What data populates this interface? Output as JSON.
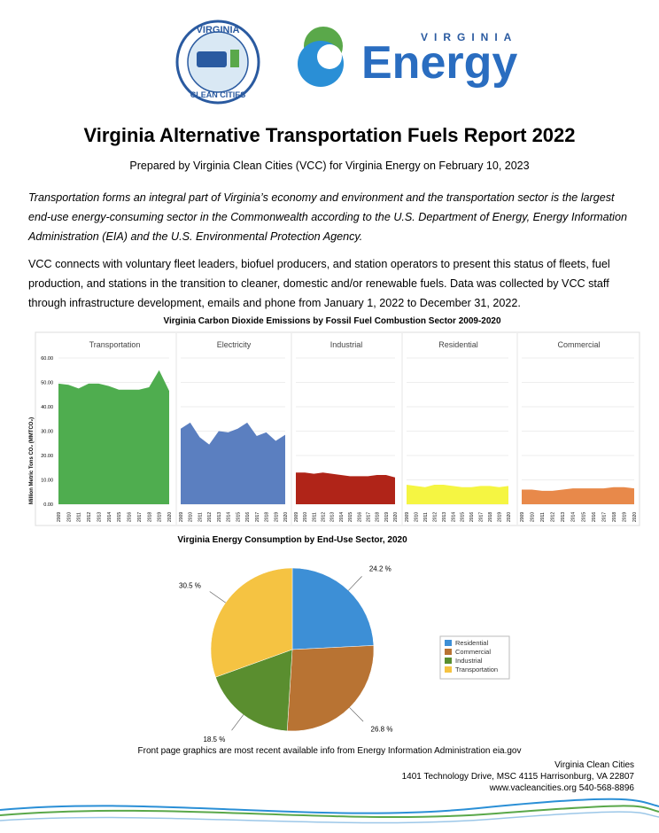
{
  "logos": {
    "vcc_top": "VIRGINIA",
    "vcc_bottom": "CLEAN CITIES",
    "ve_small": "VIRGINIA",
    "ve_big": "Energy"
  },
  "header": {
    "title": "Virginia Alternative Transportation Fuels Report 2022",
    "subtitle": "Prepared by Virginia Clean Cities (VCC) for Virginia Energy on February 10, 2023"
  },
  "body": {
    "intro": "Transportation forms an integral part of Virginia’s economy and environment and the transportation sector is the largest end-use energy-consuming sector in the Commonwealth according to the U.S. Department of Energy, Energy Information Administration (EIA) and the U.S. Environmental Protection Agency.",
    "paragraph": "VCC connects with voluntary fleet leaders, biofuel producers, and station operators to present this status of fleets, fuel production, and stations in the transition to cleaner, domestic and/or renewable fuels. Data was collected by VCC staff through infrastructure development, emails and phone from January 1, 2022 to December 31, 2022."
  },
  "chart_data": [
    {
      "type": "area",
      "title": "Virginia Carbon Dioxide Emissions by Fossil Fuel Combustion Sector 2009-2020",
      "y_label": "Million Metric Tons CO₂ (MMTCO₂)",
      "x": [
        "2009",
        "2010",
        "2011",
        "2012",
        "2013",
        "2014",
        "2015",
        "2016",
        "2017",
        "2018",
        "2019",
        "2020"
      ],
      "ylim": [
        0,
        60
      ],
      "yticks": [
        {
          "value": 0,
          "label": "0.00"
        },
        {
          "value": 10,
          "label": "10.00"
        },
        {
          "value": 20,
          "label": "20.00"
        },
        {
          "value": 30,
          "label": "30.00"
        },
        {
          "value": 40,
          "label": "40.00"
        },
        {
          "value": 50,
          "label": "50.00"
        },
        {
          "value": 60,
          "label": "60.00"
        }
      ],
      "grid": true,
      "series": [
        {
          "name": "Transportation",
          "color": "#4fad4f",
          "values": [
            49.5,
            49,
            47.5,
            49.5,
            49.5,
            48.5,
            47,
            47,
            47,
            48,
            55,
            46.5
          ]
        },
        {
          "name": "Electricity",
          "color": "#5b7fc0",
          "values": [
            31,
            33.5,
            27.5,
            24.5,
            30,
            29.5,
            31,
            33.5,
            28,
            29.5,
            26,
            28.5
          ]
        },
        {
          "name": "Industrial",
          "color": "#b02418",
          "values": [
            13,
            13,
            12.5,
            13,
            12.5,
            12,
            11.5,
            11.5,
            11.5,
            12,
            12,
            11
          ]
        },
        {
          "name": "Residential",
          "color": "#f5f542",
          "values": [
            8,
            7.5,
            7,
            8,
            8,
            7.5,
            7,
            7,
            7.5,
            7.5,
            7,
            7.5
          ]
        },
        {
          "name": "Commercial",
          "color": "#e8894a",
          "values": [
            6,
            6,
            5.5,
            5.5,
            6,
            6.5,
            6.5,
            6.5,
            6.5,
            7,
            7,
            6.5
          ]
        }
      ]
    },
    {
      "type": "pie",
      "title": "Virginia Energy Consumption by End-Use Sector, 2020",
      "categories": [
        "Residential",
        "Commercial",
        "Industrial",
        "Transportation"
      ],
      "values": [
        24.2,
        26.8,
        18.5,
        30.5
      ],
      "value_labels": [
        "24.2 %",
        "26.8 %",
        "18.5 %",
        "30.5 %"
      ],
      "colors": [
        "#3d8fd6",
        "#b87333",
        "#5a8e2f",
        "#f5c342"
      ]
    }
  ],
  "footer": {
    "note": "Front page graphics are most recent available info from Energy Information Administration eia.gov",
    "org": "Virginia Clean Cities",
    "address": "1401 Technology Drive, MSC 4115 Harrisonburg, VA 22807",
    "web": "www.vacleancities.org 540-568-8896"
  }
}
